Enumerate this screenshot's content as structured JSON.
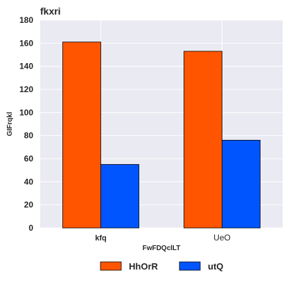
{
  "chart_data": {
    "type": "bar",
    "title": "fkxri",
    "xlabel": "FwFDQclLT",
    "ylabel": "GIFrqkl",
    "categories": [
      "kfq",
      "UeO"
    ],
    "series": [
      {
        "name": "HhOrR",
        "values": [
          161,
          153
        ],
        "color": "#ff5500"
      },
      {
        "name": "utQ",
        "values": [
          55,
          76
        ],
        "color": "#0055ff"
      }
    ],
    "ylim": [
      0,
      180
    ],
    "yticks": [
      "0",
      "20",
      "40",
      "60",
      "80",
      "100",
      "120",
      "140",
      "160",
      "180"
    ],
    "grid": true,
    "legend_position": "bottom-center"
  },
  "colors": {
    "plot_background": "#eaeaf2",
    "grid": "#ffffff",
    "bar_edge": "#000000"
  }
}
